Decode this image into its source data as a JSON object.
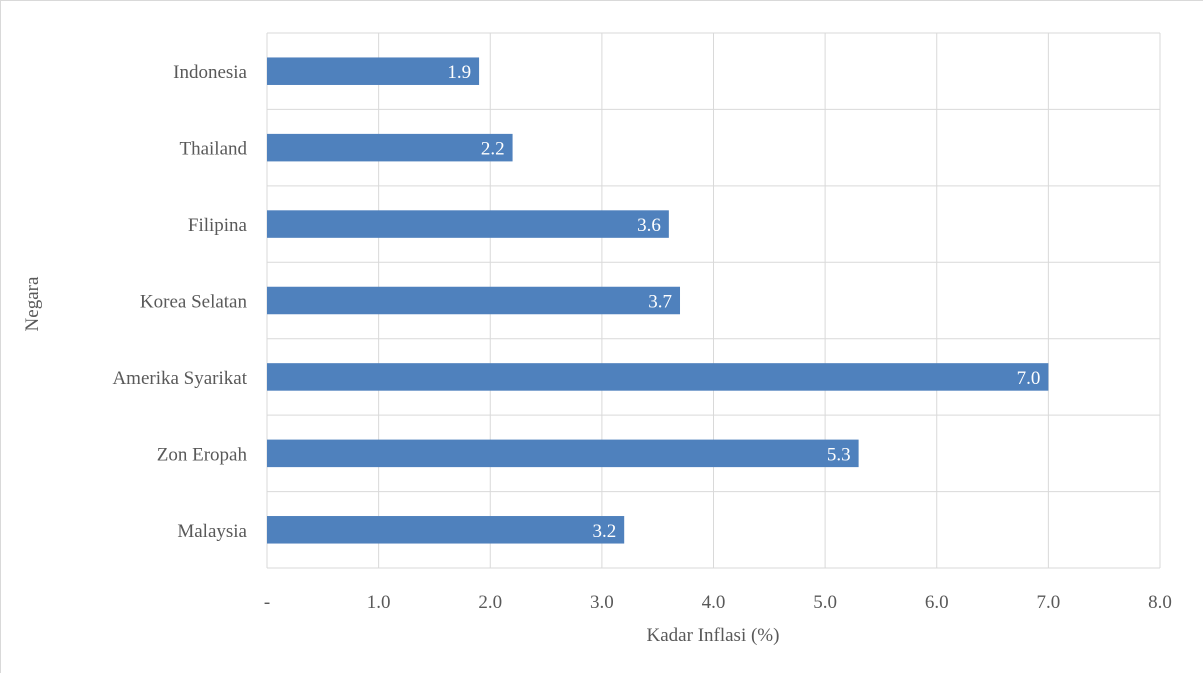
{
  "chart_data": {
    "type": "bar",
    "orientation": "horizontal",
    "categories": [
      "Indonesia",
      "Thailand",
      "Filipina",
      "Korea Selatan",
      "Amerika Syarikat",
      "Zon Eropah",
      "Malaysia"
    ],
    "values": [
      1.9,
      2.2,
      3.6,
      3.7,
      7.0,
      5.3,
      3.2
    ],
    "data_labels": [
      "1.9",
      "2.2",
      "3.6",
      "3.7",
      "7.0",
      "5.3",
      "3.2"
    ],
    "title": "",
    "xlabel": "Kadar Inflasi (%)",
    "ylabel": "Negara",
    "xlim": [
      0,
      8
    ],
    "x_ticks": [
      0,
      1,
      2,
      3,
      4,
      5,
      6,
      7,
      8
    ],
    "x_tick_labels": [
      "-",
      "1.0",
      "2.0",
      "3.0",
      "4.0",
      "5.0",
      "6.0",
      "7.0",
      "8.0"
    ],
    "grid": true,
    "legend": "none",
    "bar_color": "#4f81bd"
  }
}
